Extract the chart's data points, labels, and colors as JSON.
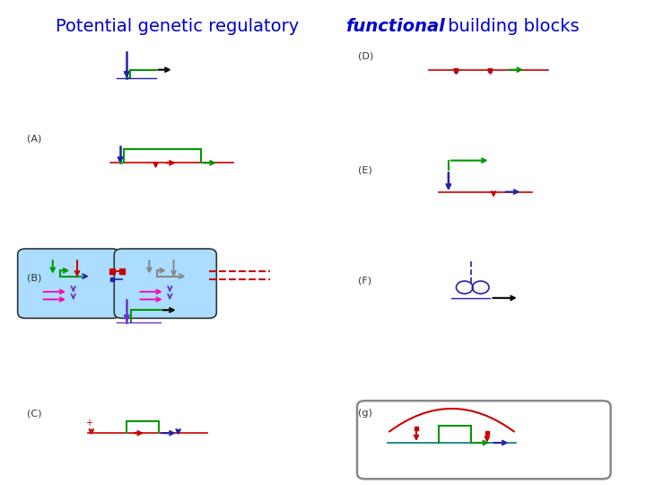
{
  "title_regular": "Potential genetic regulatory ",
  "title_bold": "functional",
  "title_after": " building blocks",
  "title_color": "#0000CC",
  "title_fontsize": 14,
  "bg_color": "#ffffff",
  "label_color": "#333333",
  "label_fontsize": 8,
  "arrow_colors": {
    "blue_dark": "#2222AA",
    "blue_purple": "#6633CC",
    "green": "#009900",
    "red": "#CC0000",
    "pink": "#FF00AA",
    "gray": "#888888",
    "black": "#000000",
    "teal": "#007777",
    "cyan_box": "#AADDFF"
  }
}
